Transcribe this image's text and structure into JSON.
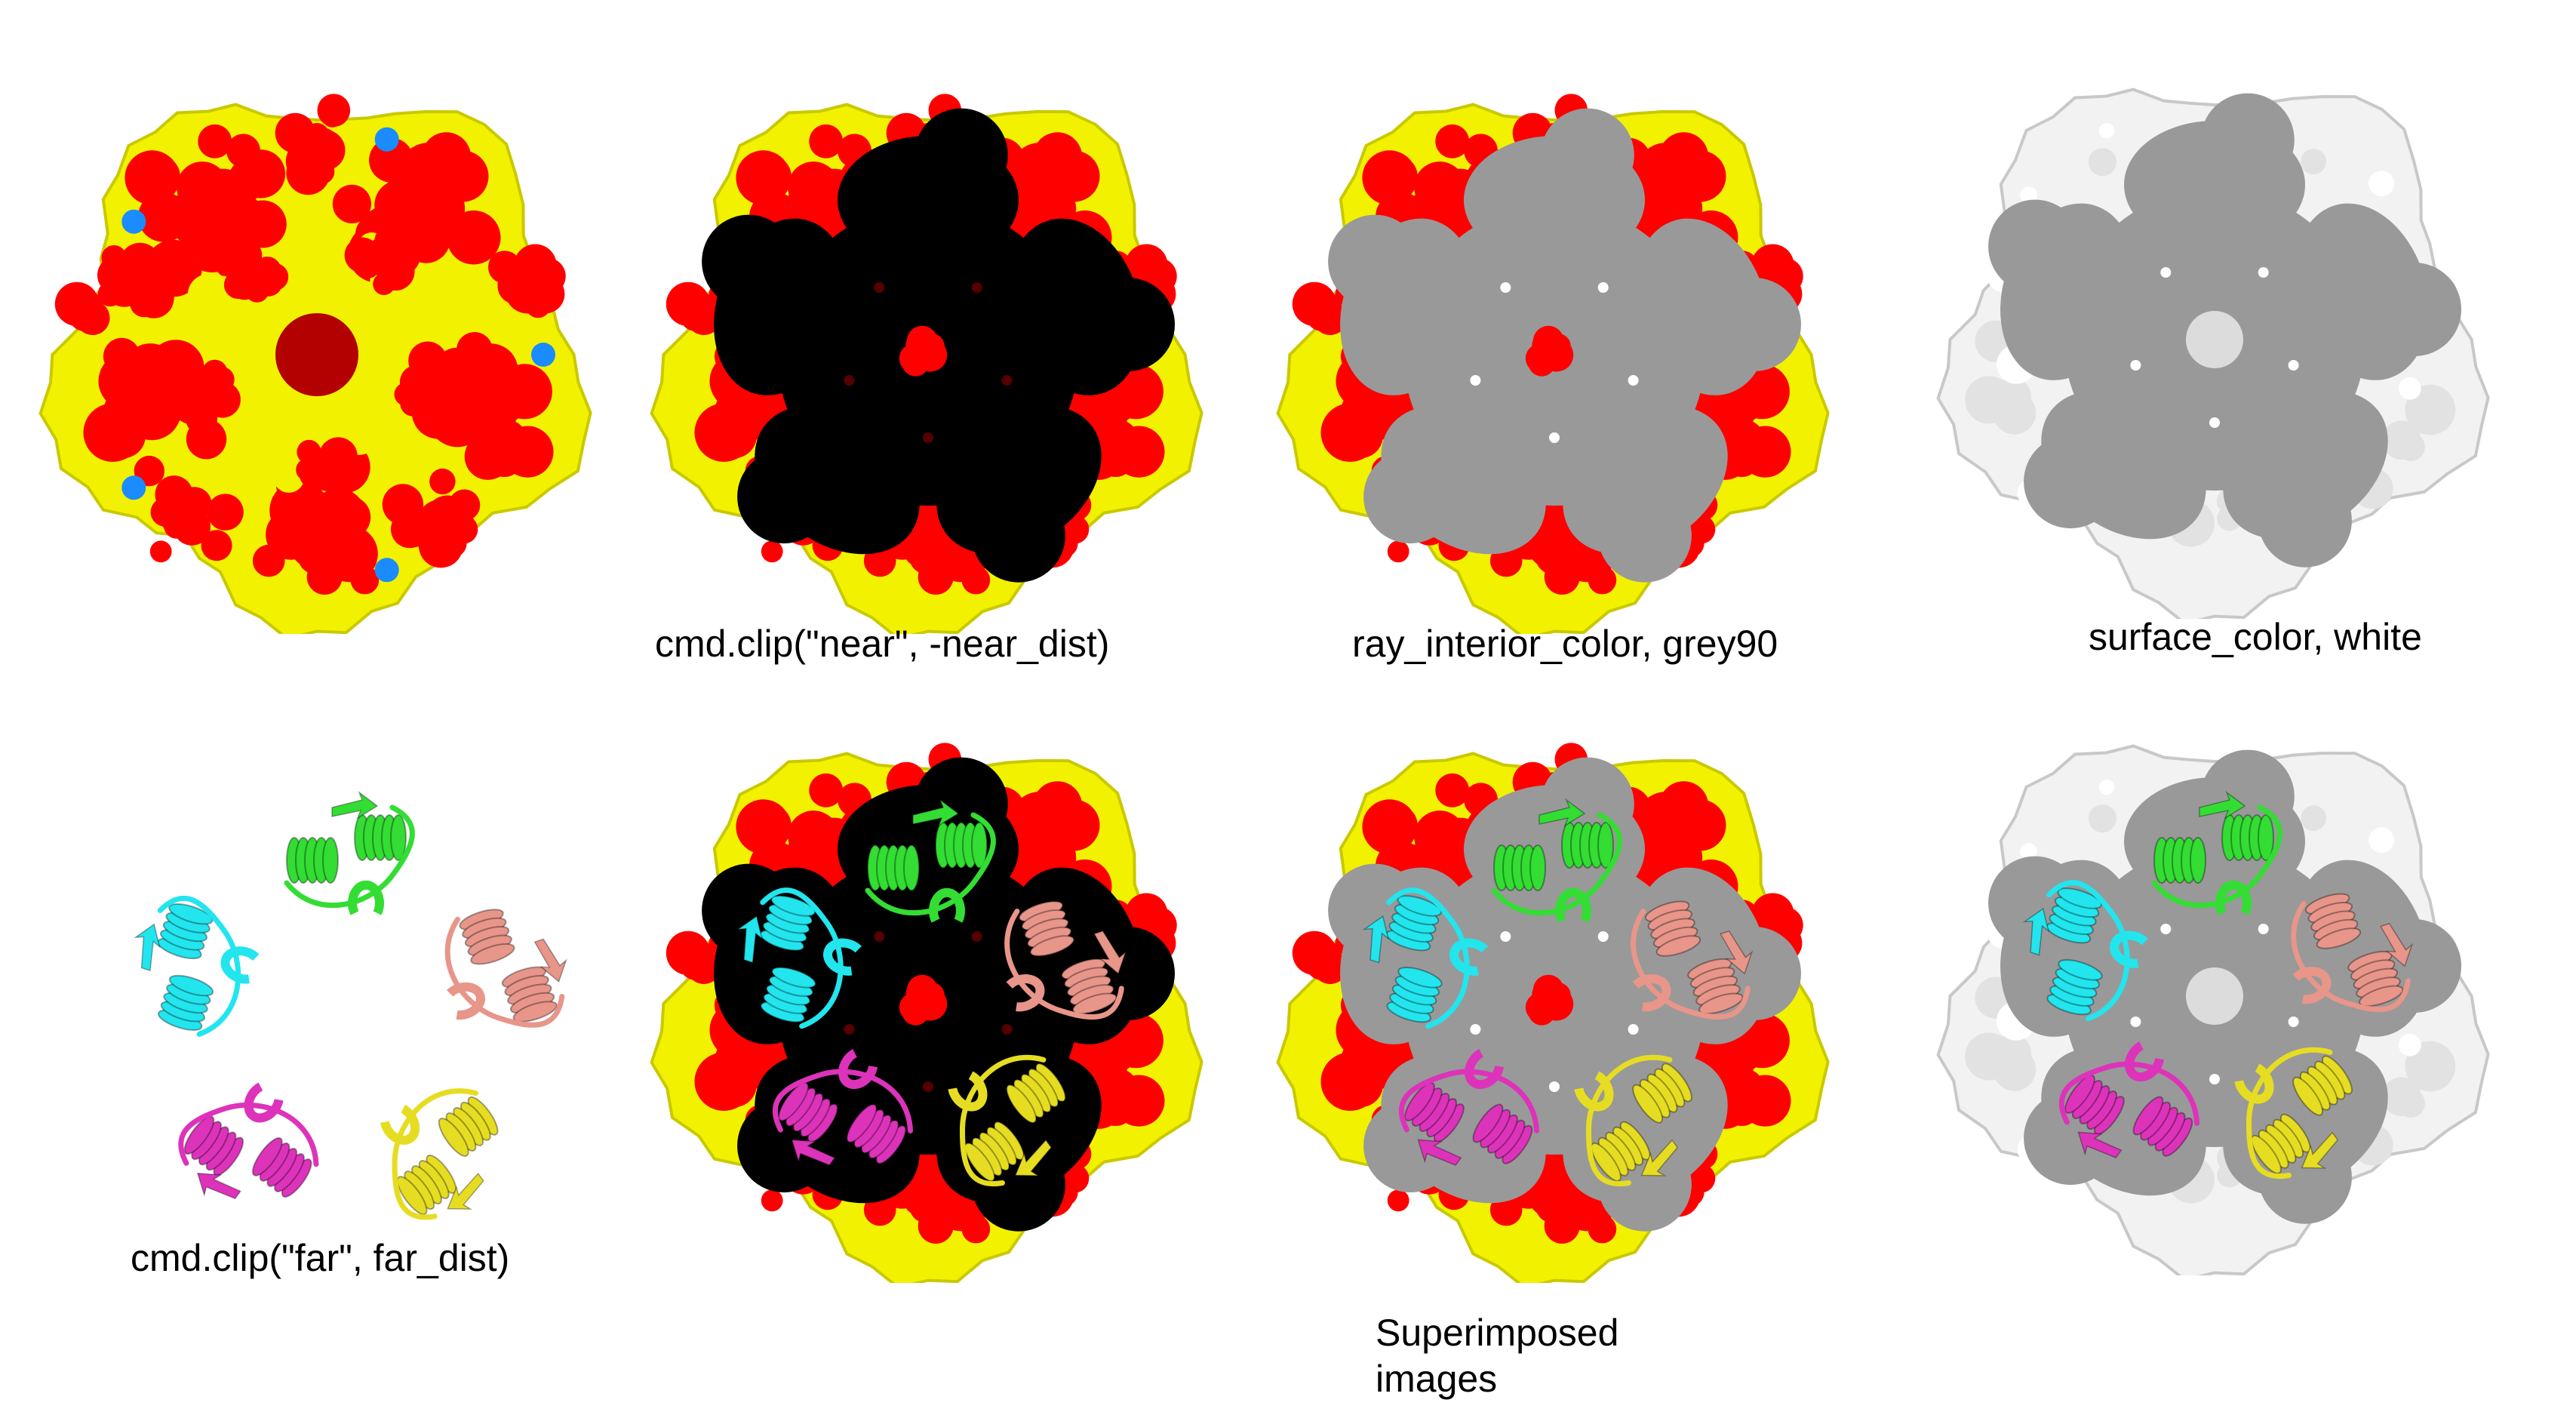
{
  "captions": {
    "top_2": "cmd.clip(\"near\", -near_dist)",
    "top_3": "ray_interior_color, grey90",
    "top_4": "surface_color, white",
    "bottom_1": "cmd.clip(\"far\", far_dist)",
    "bottom_3": "Superimposed images"
  },
  "colors": {
    "surface_red": "#ff0000",
    "surface_yellow": "#f2f200",
    "surface_blue": "#1a8cff",
    "clip_interior_black": "#000000",
    "clip_interior_grey": "#999999",
    "surface_white": "#f2f2f2",
    "chain_green": "#33dd33",
    "chain_cyan": "#22e5ee",
    "chain_salmon": "#e8958a",
    "chain_yellow": "#e6dd22",
    "chain_magenta": "#dd33bb"
  },
  "panels": [
    {
      "name": "full-surface",
      "style": "colored-surface"
    },
    {
      "name": "near-clip-black",
      "style": "near-clip-black"
    },
    {
      "name": "near-clip-grey",
      "style": "near-clip-grey"
    },
    {
      "name": "white-surface-grey",
      "style": "white-surface"
    },
    {
      "name": "far-clip-cartoon",
      "style": "cartoon-only"
    },
    {
      "name": "black-clip-cartoon",
      "style": "near-clip-black+cartoon"
    },
    {
      "name": "grey-clip-cartoon",
      "style": "near-clip-grey+cartoon"
    },
    {
      "name": "white-surface-cartoon",
      "style": "white-surface+cartoon"
    }
  ]
}
